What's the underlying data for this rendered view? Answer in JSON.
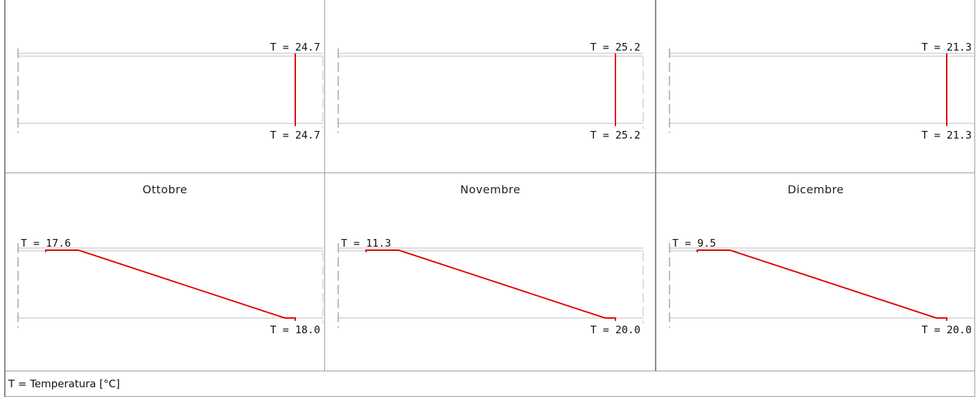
{
  "legend_text": "T = Temperatura [°C]",
  "colors": {
    "line": "#e00000",
    "grid": "#9a9a9a"
  },
  "chart_data": [
    {
      "type": "line",
      "title": "",
      "temperatures": [
        24.7,
        24.7
      ],
      "labels": [
        "T = 24.7",
        "T = 24.7"
      ],
      "profile": "vertical"
    },
    {
      "type": "line",
      "title": "",
      "temperatures": [
        25.2,
        25.2
      ],
      "labels": [
        "T = 25.2",
        "T = 25.2"
      ],
      "profile": "vertical"
    },
    {
      "type": "line",
      "title": "",
      "temperatures": [
        21.3,
        21.3
      ],
      "labels": [
        "T = 21.3",
        "T = 21.3"
      ],
      "profile": "vertical"
    },
    {
      "type": "line",
      "title": "Ottobre",
      "temperatures": [
        17.6,
        18.0
      ],
      "labels": [
        "T = 17.6",
        "T = 18.0"
      ],
      "profile": "slope"
    },
    {
      "type": "line",
      "title": "Novembre",
      "temperatures": [
        11.3,
        20.0
      ],
      "labels": [
        "T = 11.3",
        "T = 20.0"
      ],
      "profile": "slope"
    },
    {
      "type": "line",
      "title": "Dicembre",
      "temperatures": [
        9.5,
        20.0
      ],
      "labels": [
        "T = 9.5",
        "T = 20.0"
      ],
      "profile": "slope"
    }
  ]
}
